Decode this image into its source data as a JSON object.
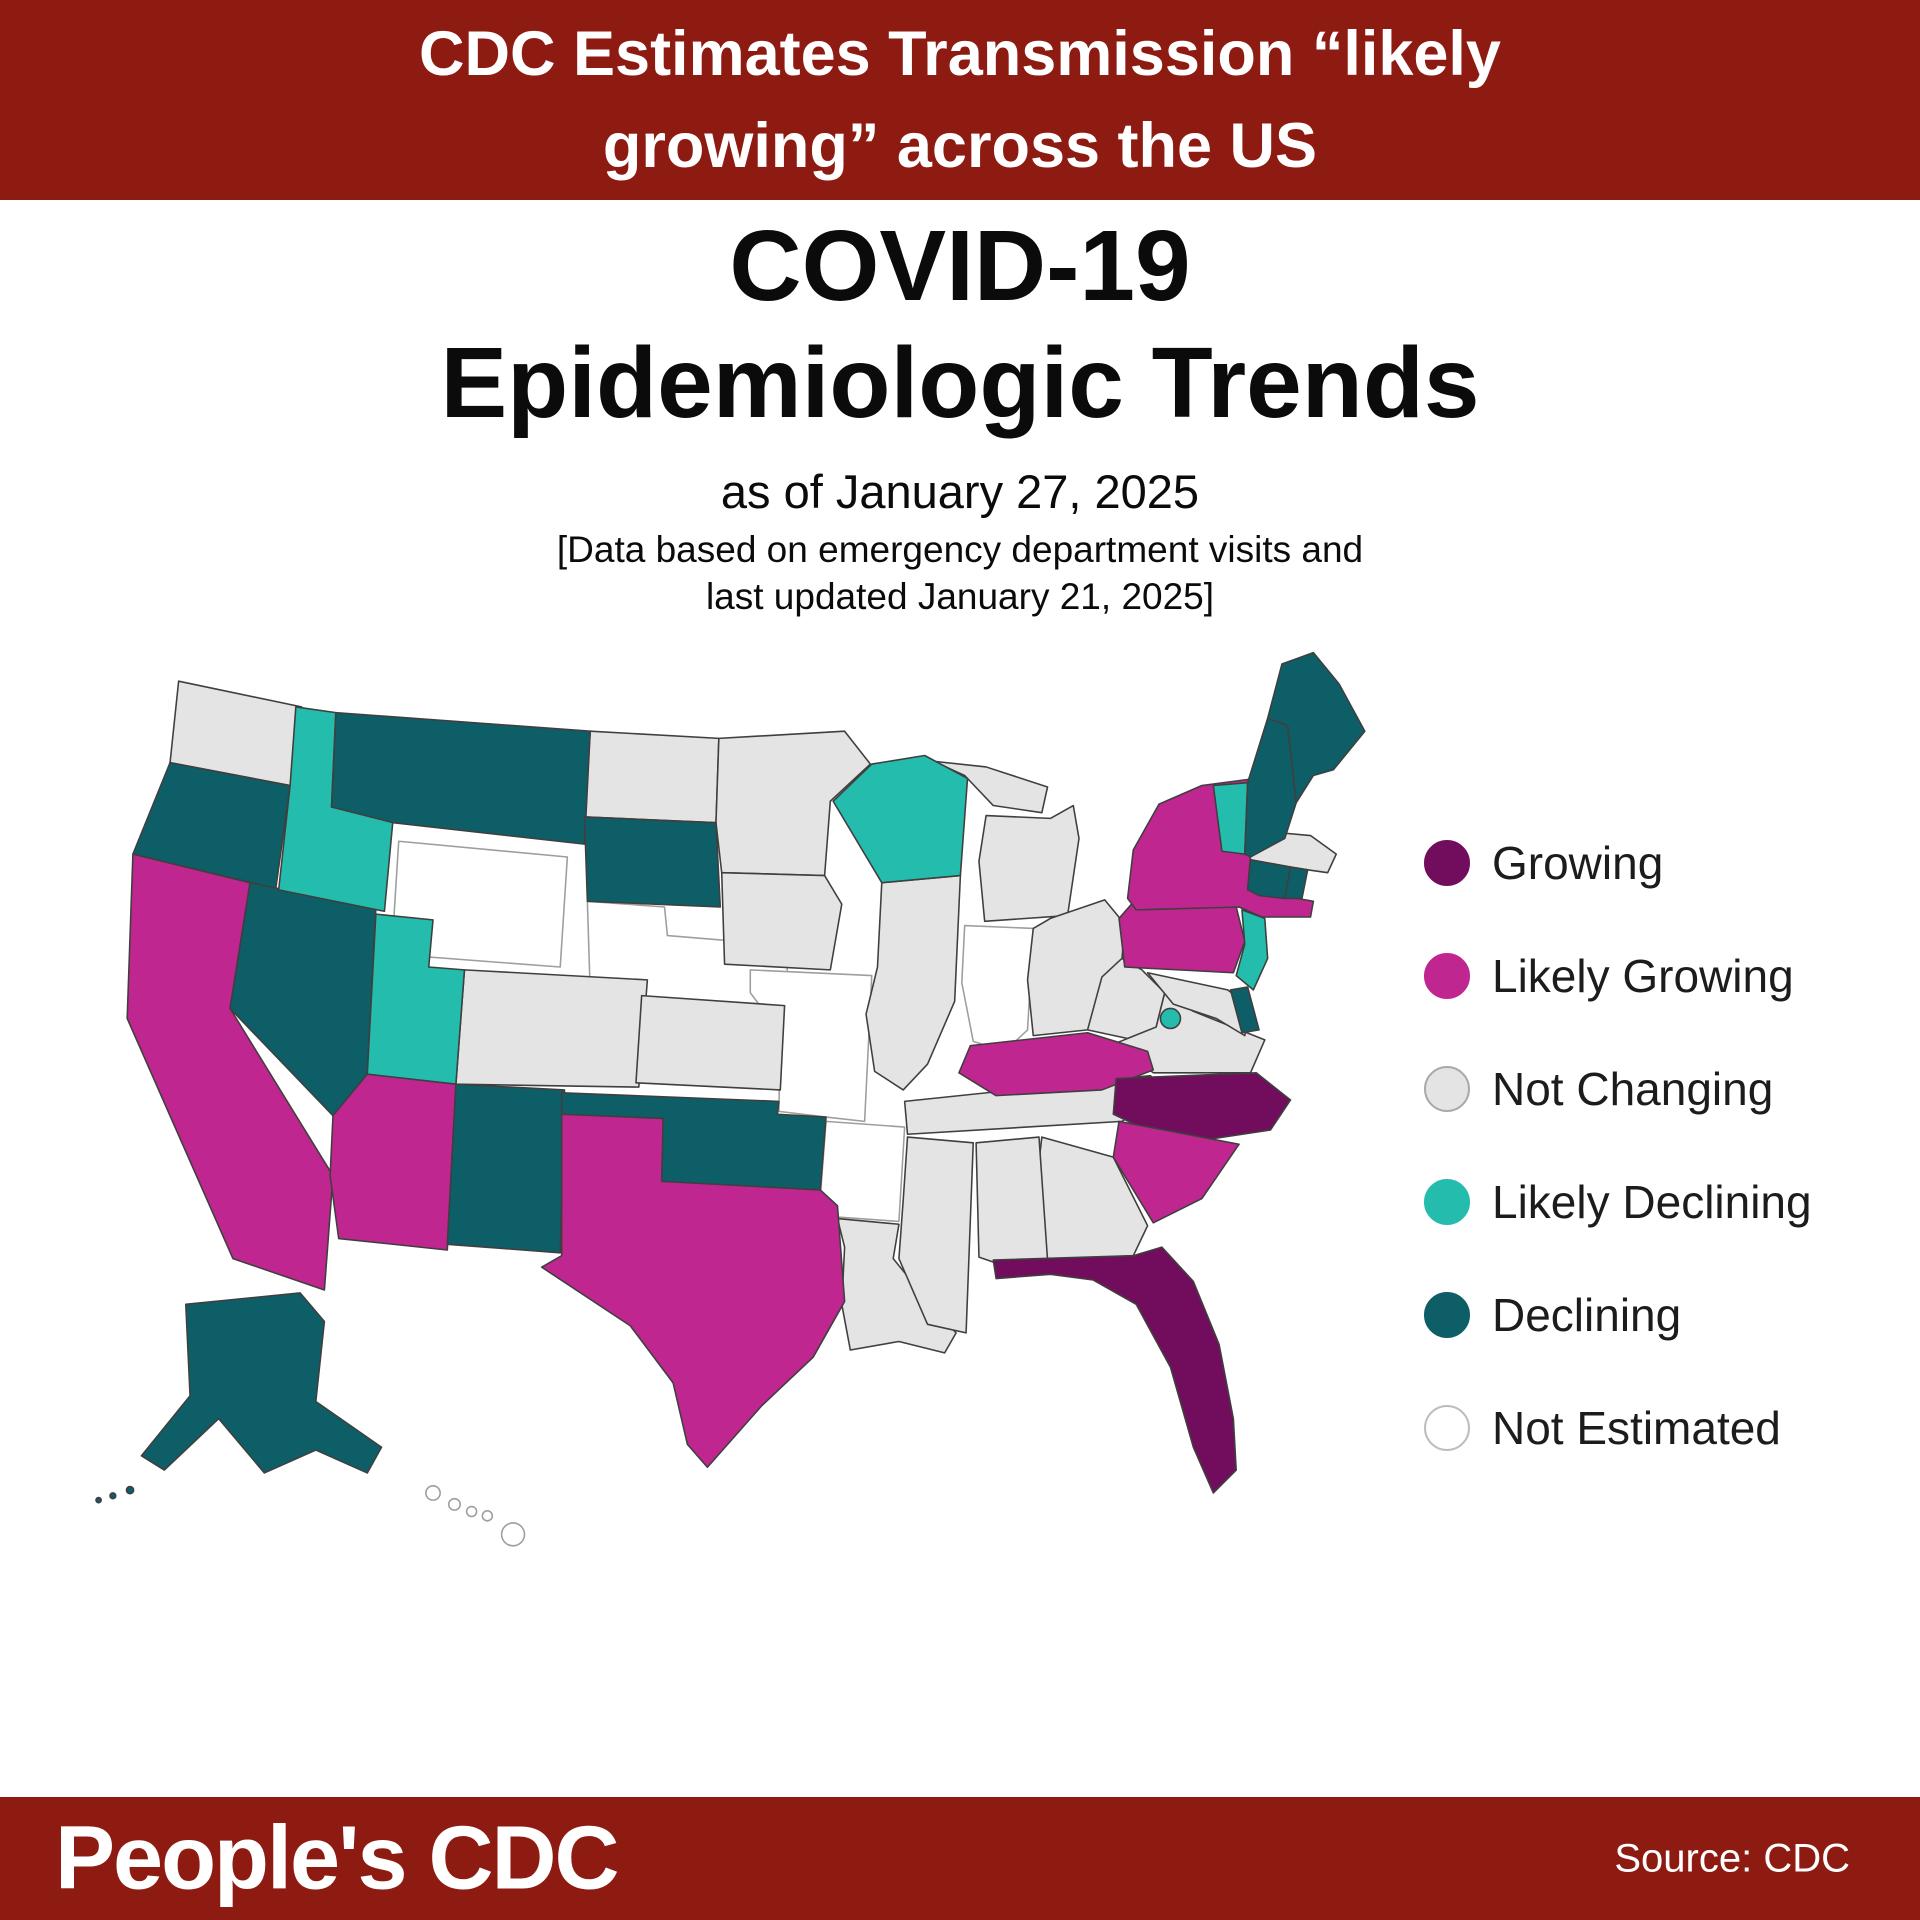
{
  "banner": {
    "line1": "CDC Estimates Transmission “likely",
    "line2": "growing” across the US",
    "bg_color": "#8E1B12",
    "text_color": "#FFFFFF"
  },
  "title": {
    "line1": "COVID-19",
    "line2": "Epidemiologic Trends"
  },
  "subtitle": "as of January 27, 2025",
  "note": {
    "line1": "[Data based on emergency department visits and",
    "line2": "last updated January 21, 2025]"
  },
  "legend": {
    "items": [
      {
        "key": "growing",
        "label": "Growing",
        "color": "#720D5D",
        "stroke": "#404040"
      },
      {
        "key": "likely_growing",
        "label": "Likely Growing",
        "color": "#C0268F",
        "stroke": "#404040"
      },
      {
        "key": "not_changing",
        "label": "Not Changing",
        "color": "#E4E4E4",
        "stroke": "#A9A9A9"
      },
      {
        "key": "likely_declining",
        "label": "Likely Declining",
        "color": "#24BCAD",
        "stroke": "#404040"
      },
      {
        "key": "declining",
        "label": "Declining",
        "color": "#0E5E68",
        "stroke": "#404040"
      },
      {
        "key": "not_estimated",
        "label": "Not Estimated",
        "color": "#FFFFFF",
        "stroke": "#BDBDBD"
      }
    ]
  },
  "map": {
    "states": [
      {
        "id": "WA",
        "name": "Washington",
        "status": "not_changing"
      },
      {
        "id": "OR",
        "name": "Oregon",
        "status": "declining"
      },
      {
        "id": "CA",
        "name": "California",
        "status": "likely_growing"
      },
      {
        "id": "NV",
        "name": "Nevada",
        "status": "declining"
      },
      {
        "id": "ID",
        "name": "Idaho",
        "status": "likely_declining"
      },
      {
        "id": "MT",
        "name": "Montana",
        "status": "declining"
      },
      {
        "id": "WY",
        "name": "Wyoming",
        "status": "not_estimated"
      },
      {
        "id": "UT",
        "name": "Utah",
        "status": "likely_declining"
      },
      {
        "id": "CO",
        "name": "Colorado",
        "status": "not_changing"
      },
      {
        "id": "AZ",
        "name": "Arizona",
        "status": "likely_growing"
      },
      {
        "id": "NM",
        "name": "New Mexico",
        "status": "declining"
      },
      {
        "id": "ND",
        "name": "North Dakota",
        "status": "not_changing"
      },
      {
        "id": "SD",
        "name": "South Dakota",
        "status": "declining"
      },
      {
        "id": "NE",
        "name": "Nebraska",
        "status": "not_estimated"
      },
      {
        "id": "KS",
        "name": "Kansas",
        "status": "not_changing"
      },
      {
        "id": "OK",
        "name": "Oklahoma",
        "status": "declining"
      },
      {
        "id": "TX",
        "name": "Texas",
        "status": "likely_growing"
      },
      {
        "id": "MN",
        "name": "Minnesota",
        "status": "not_changing"
      },
      {
        "id": "IA",
        "name": "Iowa",
        "status": "not_changing"
      },
      {
        "id": "MO",
        "name": "Missouri",
        "status": "not_estimated"
      },
      {
        "id": "AR",
        "name": "Arkansas",
        "status": "not_estimated"
      },
      {
        "id": "LA",
        "name": "Louisiana",
        "status": "not_changing"
      },
      {
        "id": "WI",
        "name": "Wisconsin",
        "status": "likely_declining"
      },
      {
        "id": "IL",
        "name": "Illinois",
        "status": "not_changing"
      },
      {
        "id": "MS",
        "name": "Mississippi",
        "status": "not_changing"
      },
      {
        "id": "MI",
        "name": "Michigan",
        "status": "not_changing"
      },
      {
        "id": "IN",
        "name": "Indiana",
        "status": "not_estimated"
      },
      {
        "id": "OH",
        "name": "Ohio",
        "status": "not_changing"
      },
      {
        "id": "KY",
        "name": "Kentucky",
        "status": "likely_growing"
      },
      {
        "id": "TN",
        "name": "Tennessee",
        "status": "not_changing"
      },
      {
        "id": "WV",
        "name": "West Virginia",
        "status": "not_changing"
      },
      {
        "id": "VA",
        "name": "Virginia",
        "status": "not_changing"
      },
      {
        "id": "MD",
        "name": "Maryland",
        "status": "not_changing"
      },
      {
        "id": "DE",
        "name": "Delaware",
        "status": "declining"
      },
      {
        "id": "DC",
        "name": "District of Columbia",
        "status": "likely_declining"
      },
      {
        "id": "PA",
        "name": "Pennsylvania",
        "status": "likely_growing"
      },
      {
        "id": "NJ",
        "name": "New Jersey",
        "status": "likely_declining"
      },
      {
        "id": "NY",
        "name": "New York",
        "status": "likely_growing"
      },
      {
        "id": "CT",
        "name": "Connecticut",
        "status": "declining"
      },
      {
        "id": "RI",
        "name": "Rhode Island",
        "status": "declining"
      },
      {
        "id": "MA",
        "name": "Massachusetts",
        "status": "not_changing"
      },
      {
        "id": "VT",
        "name": "Vermont",
        "status": "likely_declining"
      },
      {
        "id": "NH",
        "name": "New Hampshire",
        "status": "declining"
      },
      {
        "id": "ME",
        "name": "Maine",
        "status": "declining"
      },
      {
        "id": "NC",
        "name": "North Carolina",
        "status": "growing"
      },
      {
        "id": "SC",
        "name": "South Carolina",
        "status": "likely_growing"
      },
      {
        "id": "GA",
        "name": "Georgia",
        "status": "not_changing"
      },
      {
        "id": "AL",
        "name": "Alabama",
        "status": "not_changing"
      },
      {
        "id": "FL",
        "name": "Florida",
        "status": "growing"
      },
      {
        "id": "AK",
        "name": "Alaska",
        "status": "declining"
      },
      {
        "id": "HI",
        "name": "Hawaii",
        "status": "not_estimated"
      }
    ]
  },
  "footer": {
    "brand": "People's CDC",
    "source": "Source: CDC",
    "bg_color": "#8E1B12"
  }
}
